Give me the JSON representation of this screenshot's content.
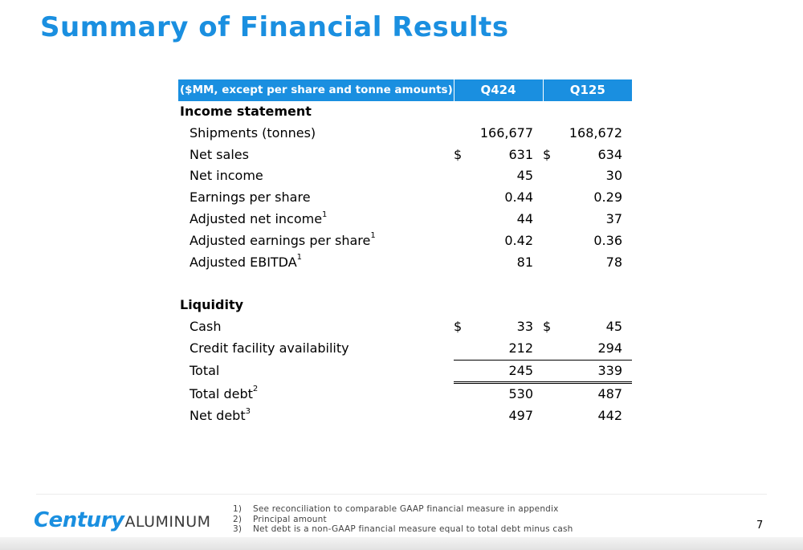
{
  "title": "Summary of Financial Results",
  "table": {
    "header": {
      "label": "($MM, except per share and tonne amounts)",
      "col1": "Q424",
      "col2": "Q125"
    },
    "income_section": "Income statement",
    "income_rows": [
      {
        "label": "Shipments (tonnes)",
        "sup": "",
        "sym1": "",
        "v1": "166,677",
        "sym2": "",
        "v2": "168,672"
      },
      {
        "label": "Net sales",
        "sup": "",
        "sym1": "$",
        "v1": "631",
        "sym2": "$",
        "v2": "634"
      },
      {
        "label": "Net income",
        "sup": "",
        "sym1": "",
        "v1": "45",
        "sym2": "",
        "v2": "30"
      },
      {
        "label": "Earnings per share",
        "sup": "",
        "sym1": "",
        "v1": "0.44",
        "sym2": "",
        "v2": "0.29"
      },
      {
        "label": "Adjusted net income",
        "sup": "1",
        "sym1": "",
        "v1": "44",
        "sym2": "",
        "v2": "37"
      },
      {
        "label": "Adjusted earnings per share",
        "sup": "1",
        "sym1": "",
        "v1": "0.42",
        "sym2": "",
        "v2": "0.36"
      },
      {
        "label": "Adjusted EBITDA",
        "sup": "1",
        "sym1": "",
        "v1": "81",
        "sym2": "",
        "v2": "78"
      }
    ],
    "liquidity_section": "Liquidity",
    "liquidity_rows": [
      {
        "label": "Cash",
        "sup": "",
        "sym1": "$",
        "v1": "33",
        "sym2": "$",
        "v2": "45"
      },
      {
        "label": "Credit facility availability",
        "sup": "",
        "sym1": "",
        "v1": "212",
        "sym2": "",
        "v2": "294"
      },
      {
        "label": "Total",
        "sup": "",
        "sym1": "",
        "v1": "245",
        "sym2": "",
        "v2": "339"
      },
      {
        "label": "Total debt",
        "sup": "2",
        "sym1": "",
        "v1": "530",
        "sym2": "",
        "v2": "487"
      },
      {
        "label": "Net debt",
        "sup": "3",
        "sym1": "",
        "v1": "497",
        "sym2": "",
        "v2": "442"
      }
    ]
  },
  "footer": {
    "logo_bold": "Century",
    "logo_light": "ALUMINUM",
    "footnotes": [
      {
        "num": "1)",
        "text": "See reconciliation to comparable GAAP financial measure in appendix"
      },
      {
        "num": "2)",
        "text": "Principal amount"
      },
      {
        "num": "3)",
        "text": "Net debt is a non-GAAP financial measure equal to total debt minus cash"
      }
    ],
    "page_number": "7"
  }
}
